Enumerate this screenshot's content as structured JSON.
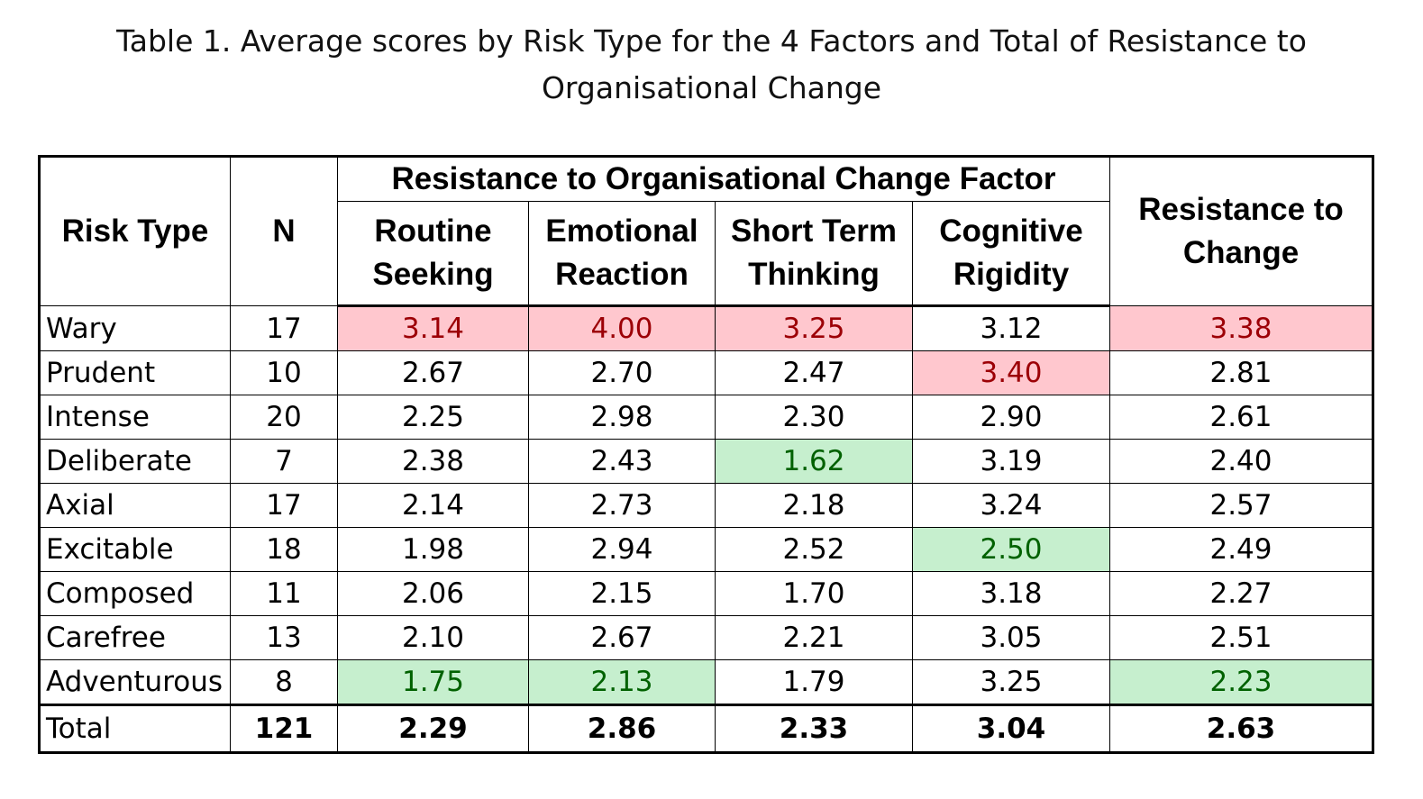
{
  "caption": {
    "line1": "Table 1. Average scores by Risk Type for the 4 Factors and Total of Resistance to",
    "line2": "Organisational Change"
  },
  "headers": {
    "risk_type": "Risk Type",
    "n": "N",
    "factor_group": "Resistance to Organisational Change Factor",
    "routine_seeking": [
      "Routine",
      "Seeking"
    ],
    "emotional_reaction": [
      "Emotional",
      "Reaction"
    ],
    "short_term_thinking": [
      "Short Term",
      "Thinking"
    ],
    "cognitive_rigidity": [
      "Cognitive",
      "Rigidity"
    ],
    "resistance_to_change": [
      "Resistance to",
      "Change"
    ]
  },
  "rows": [
    {
      "risk_type": "Wary",
      "n": "17",
      "routine": "3.14",
      "emotional": "4.00",
      "short_term": "3.25",
      "cognitive": "3.12",
      "total": "3.38"
    },
    {
      "risk_type": "Prudent",
      "n": "10",
      "routine": "2.67",
      "emotional": "2.70",
      "short_term": "2.47",
      "cognitive": "3.40",
      "total": "2.81"
    },
    {
      "risk_type": "Intense",
      "n": "20",
      "routine": "2.25",
      "emotional": "2.98",
      "short_term": "2.30",
      "cognitive": "2.90",
      "total": "2.61"
    },
    {
      "risk_type": "Deliberate",
      "n": "7",
      "routine": "2.38",
      "emotional": "2.43",
      "short_term": "1.62",
      "cognitive": "3.19",
      "total": "2.40"
    },
    {
      "risk_type": "Axial",
      "n": "17",
      "routine": "2.14",
      "emotional": "2.73",
      "short_term": "2.18",
      "cognitive": "3.24",
      "total": "2.57"
    },
    {
      "risk_type": "Excitable",
      "n": "18",
      "routine": "1.98",
      "emotional": "2.94",
      "short_term": "2.52",
      "cognitive": "2.50",
      "total": "2.49"
    },
    {
      "risk_type": "Composed",
      "n": "11",
      "routine": "2.06",
      "emotional": "2.15",
      "short_term": "1.70",
      "cognitive": "3.18",
      "total": "2.27"
    },
    {
      "risk_type": "Carefree",
      "n": "13",
      "routine": "2.10",
      "emotional": "2.67",
      "short_term": "2.21",
      "cognitive": "3.05",
      "total": "2.51"
    },
    {
      "risk_type": "Adventurous",
      "n": "8",
      "routine": "1.75",
      "emotional": "2.13",
      "short_term": "1.79",
      "cognitive": "3.25",
      "total": "2.23"
    }
  ],
  "total_row": {
    "risk_type": "Total",
    "n": "121",
    "routine": "2.29",
    "emotional": "2.86",
    "short_term": "2.33",
    "cognitive": "3.04",
    "total": "2.63"
  },
  "highlights": {
    "high": {
      "fill": "#ffc7ce",
      "text": "#9c0006"
    },
    "low": {
      "fill": "#c6efce",
      "text": "#006100"
    }
  }
}
